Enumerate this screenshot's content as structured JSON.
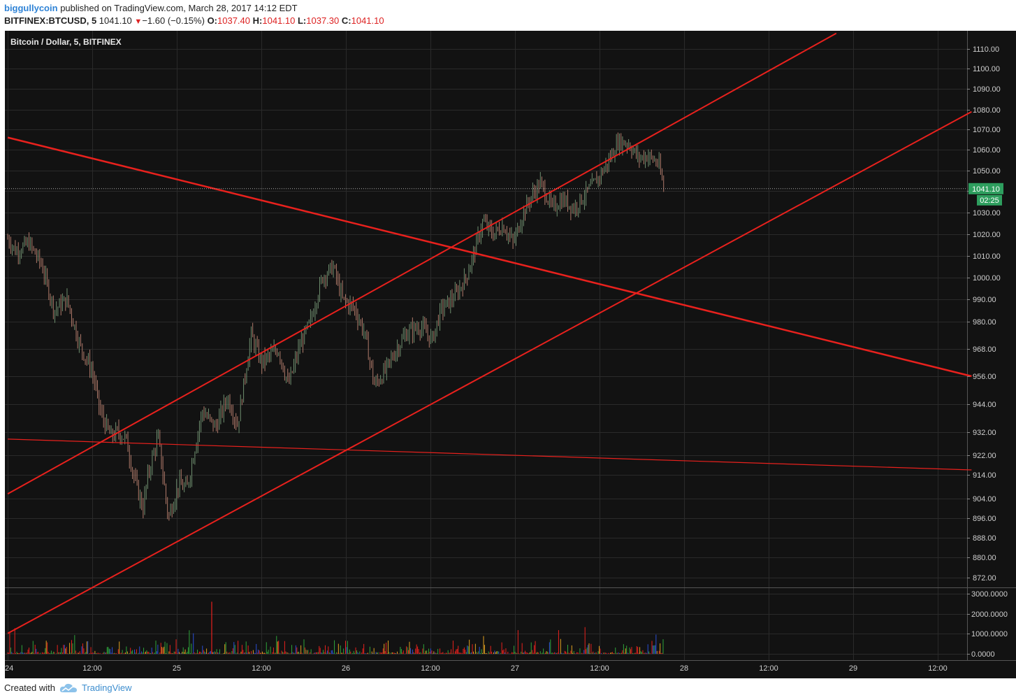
{
  "header": {
    "author": "biggullycoin",
    "published_text": "published on TradingView.com, March 28, 2017 14:12 EDT",
    "symbol": "BITFINEX:BTCUSD, 5",
    "last": "1041.10",
    "change_arrow": "▼",
    "change": "−1.60 (−0.15%)",
    "open_label": "O:",
    "open": "1037.40",
    "high_label": "H:",
    "high": "1041.10",
    "low_label": "L:",
    "low": "1037.30",
    "close_label": "C:",
    "close": "1041.10"
  },
  "footer": {
    "created_with": "Created with",
    "brand": "TradingView"
  },
  "chart_data": {
    "type": "candlestick",
    "title": "Bitcoin / Dollar, 5, BITFINEX",
    "colors": {
      "background": "#121212",
      "up": "#6f8f6f",
      "down": "#b07a6a",
      "trendline": "#e8211d",
      "grid": "#2a2a2a"
    },
    "x_ticks": [
      "24",
      "12:00",
      "25",
      "12:00",
      "26",
      "12:00",
      "27",
      "12:00",
      "28",
      "12:00",
      "29",
      "12:00"
    ],
    "y_ticks": [
      "1110.00",
      "1100.00",
      "1090.00",
      "1080.00",
      "1070.00",
      "1060.00",
      "1050.00",
      "1040.00",
      "1030.00",
      "1020.00",
      "1010.00",
      "1000.00",
      "990.00",
      "980.00",
      "968.00",
      "956.00",
      "944.00",
      "932.00",
      "922.00",
      "914.00",
      "904.00",
      "896.00",
      "888.00",
      "880.00",
      "872.00"
    ],
    "last_price_label": "1041.10",
    "countdown_label": "02:25",
    "price_path": [
      [
        0,
        1018
      ],
      [
        0.1,
        1012
      ],
      [
        0.25,
        1016
      ],
      [
        0.4,
        1006
      ],
      [
        0.55,
        985
      ],
      [
        0.7,
        990
      ],
      [
        0.85,
        970
      ],
      [
        1.0,
        958
      ],
      [
        1.1,
        940
      ],
      [
        1.22,
        930
      ],
      [
        1.3,
        932
      ],
      [
        1.4,
        929
      ],
      [
        1.5,
        912
      ],
      [
        1.6,
        900
      ],
      [
        1.66,
        914
      ],
      [
        1.78,
        930
      ],
      [
        1.9,
        896
      ],
      [
        2.02,
        910
      ],
      [
        2.12,
        908
      ],
      [
        2.3,
        941
      ],
      [
        2.46,
        934
      ],
      [
        2.6,
        947
      ],
      [
        2.72,
        935
      ],
      [
        2.88,
        974
      ],
      [
        3.0,
        962
      ],
      [
        3.2,
        968
      ],
      [
        3.32,
        952
      ],
      [
        3.46,
        970
      ],
      [
        3.58,
        980
      ],
      [
        3.72,
        1000
      ],
      [
        3.85,
        1005
      ],
      [
        3.96,
        990
      ],
      [
        4.1,
        986
      ],
      [
        4.22,
        975
      ],
      [
        4.34,
        952
      ],
      [
        4.46,
        958
      ],
      [
        4.6,
        968
      ],
      [
        4.72,
        975
      ],
      [
        4.88,
        978
      ],
      [
        5.02,
        972
      ],
      [
        5.12,
        985
      ],
      [
        5.3,
        992
      ],
      [
        5.42,
        1000
      ],
      [
        5.52,
        1012
      ],
      [
        5.62,
        1026
      ],
      [
        5.74,
        1020
      ],
      [
        5.86,
        1024
      ],
      [
        5.98,
        1016
      ],
      [
        6.1,
        1030
      ],
      [
        6.2,
        1038
      ],
      [
        6.3,
        1044
      ],
      [
        6.44,
        1032
      ],
      [
        6.56,
        1036
      ],
      [
        6.7,
        1032
      ],
      [
        6.86,
        1040
      ],
      [
        6.98,
        1046
      ],
      [
        7.1,
        1054
      ],
      [
        7.22,
        1064
      ],
      [
        7.34,
        1063
      ],
      [
        7.46,
        1056
      ],
      [
        7.58,
        1057
      ],
      [
        7.7,
        1053
      ],
      [
        7.76,
        1041
      ]
    ],
    "trendlines": [
      {
        "from": [
          0,
          1066
        ],
        "to": [
          11.4,
          956
        ]
      },
      {
        "from": [
          0,
          906
        ],
        "to": [
          9.8,
          1118
        ]
      },
      {
        "from": [
          0.0,
          850
        ],
        "to": [
          11.4,
          1079
        ]
      },
      {
        "from": [
          0,
          929
        ],
        "to": [
          11.4,
          916
        ]
      }
    ],
    "volume": {
      "y_ticks": [
        "3000.0000",
        "2000.0000",
        "1000.0000",
        "0.0000"
      ],
      "max": 3000
    }
  }
}
